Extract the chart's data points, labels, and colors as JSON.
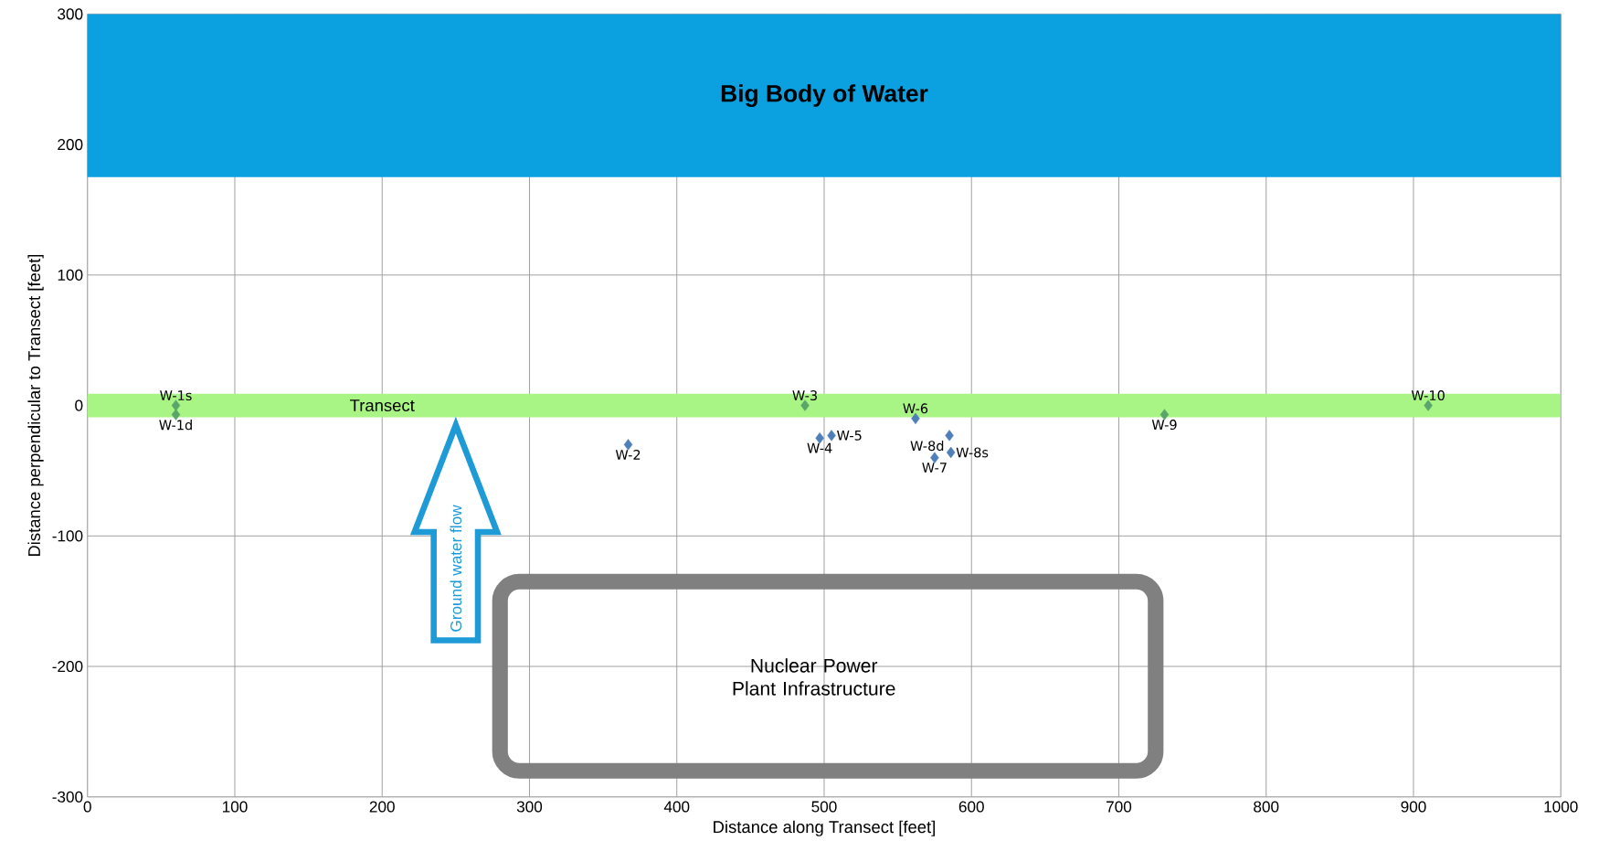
{
  "chart_data": {
    "type": "scatter",
    "xlabel": "Distance along Transect [feet]",
    "ylabel": "Distance perpendicular to Transect [feet]",
    "series": [
      {
        "color": "#5aa66a",
        "x": [
          60,
          60,
          487,
          731,
          910
        ],
        "values": [
          0,
          -7,
          0,
          -7,
          0
        ]
      },
      {
        "color": "#4f7fb8",
        "x": [
          367,
          497,
          505,
          562,
          585,
          575,
          586
        ],
        "values": [
          -30,
          -25,
          -23,
          -10,
          -23,
          -40,
          -36
        ]
      }
    ],
    "xlim": [
      0,
      1000
    ],
    "ylim": [
      -300,
      300
    ],
    "xticks": [
      0,
      100,
      200,
      300,
      400,
      500,
      600,
      700,
      800,
      900,
      1000
    ],
    "yticks": [
      -300,
      -200,
      -100,
      0,
      100,
      200,
      300
    ],
    "grid": true,
    "marker": "diamond",
    "bands": [
      {
        "axis": "y",
        "from": 175,
        "to": 300,
        "label": "**Big Body of Water**",
        "color": "#0ba0e0"
      },
      {
        "axis": "y",
        "from": -9,
        "to": 9,
        "label": "Transect",
        "color": "#a8f585"
      }
    ],
    "annotations": [
      {
        "text": "W-1s",
        "x": 60,
        "y": 0
      },
      {
        "text": "W-1d",
        "x": 60,
        "y": -7
      },
      {
        "text": "W-2",
        "x": 367,
        "y": -30
      },
      {
        "text": "W-3",
        "x": 487,
        "y": 0
      },
      {
        "text": "W-4",
        "x": 497,
        "y": -25
      },
      {
        "text": "W-5",
        "x": 505,
        "y": -23
      },
      {
        "text": "W-6",
        "x": 562,
        "y": -10
      },
      {
        "text": "W-8d",
        "x": 585,
        "y": -23
      },
      {
        "text": "W-7",
        "x": 575,
        "y": -40
      },
      {
        "text": "W-8s",
        "x": 586,
        "y": -36
      },
      {
        "text": "W-9",
        "x": 731,
        "y": -7
      },
      {
        "text": "W-10",
        "x": 910,
        "y": 0
      },
      "Ground water flow",
      "Nuclear Power Plant Infrastructure"
    ]
  }
}
